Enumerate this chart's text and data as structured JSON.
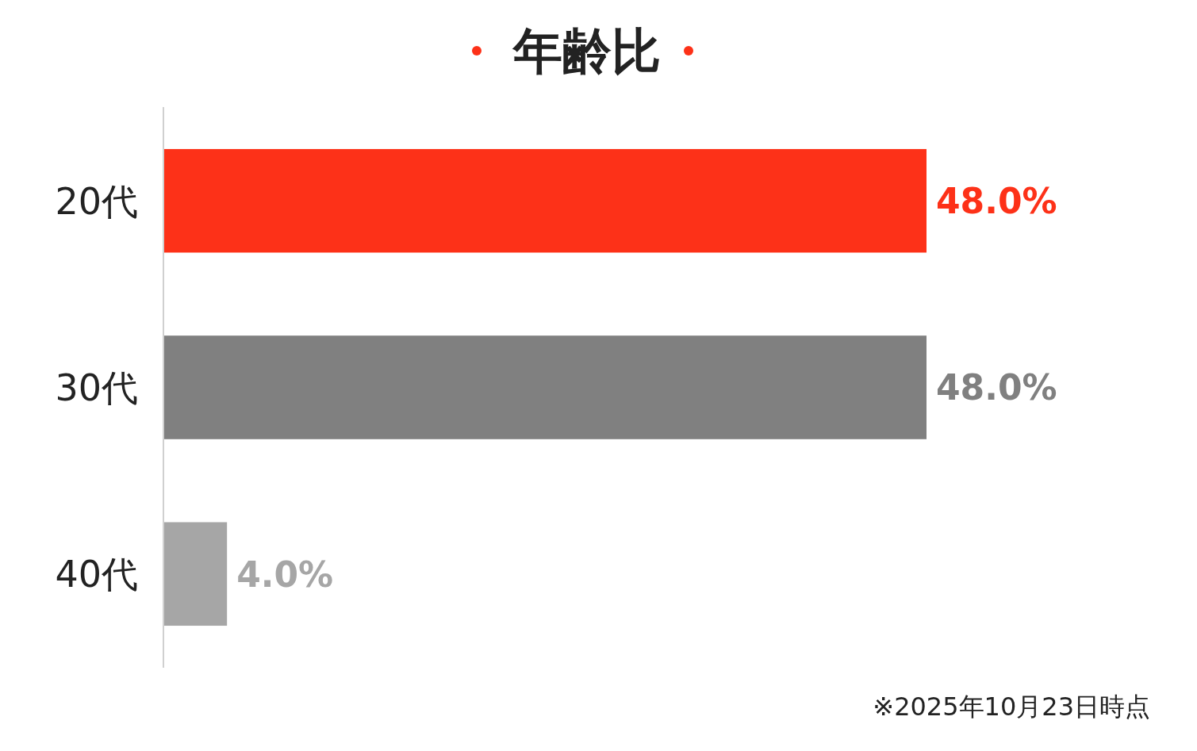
{
  "chart_data": {
    "type": "bar",
    "orientation": "horizontal",
    "title": "年齢比",
    "categories": [
      "20代",
      "30代",
      "40代"
    ],
    "values": [
      48.0,
      48.0,
      4.0
    ],
    "colors": [
      "#fd3118",
      "#808080",
      "#a6a6a6"
    ],
    "value_labels": [
      "48.0%",
      "48.0%",
      "4.0%"
    ],
    "annotations": [
      "※2025年10月23日時点"
    ]
  }
}
